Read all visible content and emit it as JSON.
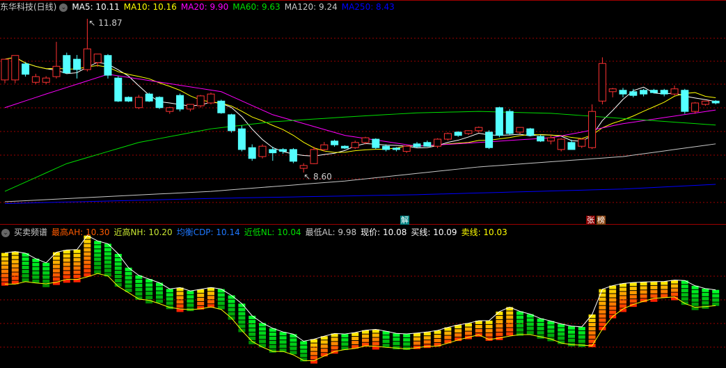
{
  "main_legend": {
    "title": "东华科技(日线)",
    "items": [
      {
        "label": "MA5: 10.11",
        "color": "#ffffff"
      },
      {
        "label": "MA10: 10.16",
        "color": "#ffff00"
      },
      {
        "label": "MA20: 9.90",
        "color": "#ff00ff"
      },
      {
        "label": "MA60: 9.63",
        "color": "#00e000"
      },
      {
        "label": "MA120: 9.24",
        "color": "#c8c8c8"
      },
      {
        "label": "MA250: 8.43",
        "color": "#0000ff"
      }
    ]
  },
  "annotations": {
    "high_label": "11.87",
    "low_label": "8.60"
  },
  "event_tags": [
    {
      "text": "解",
      "color": "#008080"
    },
    {
      "text": "张",
      "color": "#8b0000"
    },
    {
      "text": "榜",
      "color": "#8b4513"
    }
  ],
  "indicator_legend": {
    "title": "买卖频谱",
    "items": [
      {
        "label": "最高AH: 10.30",
        "color": "#ff5a00"
      },
      {
        "label": "近高NH: 10.20",
        "color": "#c8e632"
      },
      {
        "label": "均衡CDP: 10.14",
        "color": "#1e78ff"
      },
      {
        "label": "近低NL: 10.04",
        "color": "#00e000"
      },
      {
        "label": "最低AL: 9.98",
        "color": "#c8c8c8"
      },
      {
        "label": "现价: 10.08",
        "color": "#ffffff"
      },
      {
        "label": "买线: 10.09",
        "color": "#ffffff"
      },
      {
        "label": "卖线: 10.03",
        "color": "#ffff00"
      }
    ]
  },
  "colors": {
    "up": "#ff3232",
    "down": "#54ffff",
    "grid": "#a00000"
  },
  "chart_data": {
    "type": "candlestick",
    "candles_ohlc": [
      [
        10.57,
        11.01,
        10.5,
        11.01
      ],
      [
        10.57,
        11.09,
        10.5,
        11.09
      ],
      [
        10.91,
        10.95,
        10.64,
        10.69
      ],
      [
        10.52,
        10.7,
        10.48,
        10.64
      ],
      [
        10.52,
        10.65,
        10.48,
        10.61
      ],
      [
        10.64,
        11.38,
        10.6,
        10.86
      ],
      [
        11.09,
        11.15,
        10.7,
        10.72
      ],
      [
        11.01,
        11.1,
        10.6,
        10.79
      ],
      [
        10.79,
        11.87,
        10.75,
        11.23
      ],
      [
        10.94,
        11.1,
        10.85,
        11.12
      ],
      [
        11.09,
        11.12,
        10.6,
        10.67
      ],
      [
        10.61,
        10.65,
        10.1,
        10.12
      ],
      [
        10.2,
        10.22,
        10.1,
        10.12
      ],
      [
        9.98,
        10.25,
        9.95,
        10.2
      ],
      [
        10.27,
        10.3,
        10.1,
        10.12
      ],
      [
        10.2,
        10.22,
        9.95,
        9.98
      ],
      [
        9.9,
        10.0,
        9.85,
        9.98
      ],
      [
        10.24,
        10.28,
        9.9,
        9.95
      ],
      [
        9.95,
        10.05,
        9.9,
        10.05
      ],
      [
        10.02,
        10.25,
        9.98,
        10.23
      ],
      [
        10.08,
        10.3,
        10.05,
        10.27
      ],
      [
        10.12,
        10.15,
        9.85,
        9.87
      ],
      [
        9.83,
        9.85,
        9.45,
        9.49
      ],
      [
        9.53,
        9.6,
        9.05,
        9.09
      ],
      [
        9.13,
        9.2,
        8.85,
        8.9
      ],
      [
        8.94,
        9.2,
        8.9,
        9.16
      ],
      [
        9.09,
        9.15,
        8.85,
        9.02
      ],
      [
        9.09,
        9.12,
        9.0,
        9.05
      ],
      [
        9.09,
        9.12,
        8.8,
        8.84
      ],
      [
        8.69,
        8.8,
        8.6,
        8.75
      ],
      [
        8.79,
        9.15,
        8.78,
        9.09
      ],
      [
        9.09,
        9.25,
        9.05,
        9.19
      ],
      [
        9.27,
        9.3,
        9.15,
        9.19
      ],
      [
        9.16,
        9.18,
        9.1,
        9.12
      ],
      [
        9.13,
        9.28,
        9.1,
        9.24
      ],
      [
        9.24,
        9.36,
        9.2,
        9.34
      ],
      [
        9.31,
        9.33,
        9.1,
        9.13
      ],
      [
        9.16,
        9.2,
        9.05,
        9.09
      ],
      [
        9.12,
        9.14,
        9.05,
        9.09
      ],
      [
        9.05,
        9.18,
        9.02,
        9.16
      ],
      [
        9.21,
        9.25,
        9.12,
        9.15
      ],
      [
        9.24,
        9.28,
        9.15,
        9.16
      ],
      [
        9.16,
        9.33,
        9.12,
        9.31
      ],
      [
        9.31,
        9.45,
        9.28,
        9.43
      ],
      [
        9.46,
        9.48,
        9.36,
        9.39
      ],
      [
        9.43,
        9.5,
        9.4,
        9.49
      ],
      [
        9.49,
        9.58,
        9.45,
        9.56
      ],
      [
        9.46,
        9.5,
        9.1,
        9.13
      ],
      [
        9.98,
        10.0,
        9.35,
        9.39
      ],
      [
        9.9,
        9.95,
        9.4,
        9.43
      ],
      [
        9.46,
        9.56,
        9.42,
        9.56
      ],
      [
        9.53,
        9.55,
        9.37,
        9.39
      ],
      [
        9.37,
        9.4,
        9.25,
        9.27
      ],
      [
        9.27,
        9.4,
        9.2,
        9.34
      ],
      [
        9.09,
        9.33,
        9.05,
        9.31
      ],
      [
        9.24,
        9.3,
        9.09,
        9.09
      ],
      [
        9.16,
        9.33,
        9.12,
        9.31
      ],
      [
        9.13,
        10.05,
        9.1,
        9.9
      ],
      [
        10.12,
        11.05,
        10.05,
        10.92
      ],
      [
        10.32,
        10.4,
        10.2,
        10.38
      ],
      [
        10.35,
        10.4,
        10.2,
        10.27
      ],
      [
        10.32,
        10.38,
        10.2,
        10.24
      ],
      [
        10.35,
        10.38,
        10.22,
        10.27
      ],
      [
        10.35,
        10.38,
        10.28,
        10.3
      ],
      [
        10.35,
        10.38,
        10.22,
        10.27
      ],
      [
        10.27,
        10.45,
        10.24,
        10.38
      ],
      [
        10.35,
        10.38,
        9.85,
        9.9
      ],
      [
        9.9,
        10.1,
        9.85,
        10.08
      ],
      [
        10.05,
        10.12,
        10.02,
        10.12
      ],
      [
        10.12,
        10.14,
        10.05,
        10.08
      ]
    ],
    "ma20": [
      [
        0,
        9.98
      ],
      [
        4,
        10.27
      ],
      [
        10,
        10.69
      ],
      [
        16,
        10.49
      ],
      [
        21,
        10.32
      ],
      [
        26,
        9.83
      ],
      [
        33,
        9.39
      ],
      [
        40,
        9.16
      ],
      [
        46,
        9.24
      ],
      [
        53,
        9.34
      ],
      [
        56,
        9.46
      ],
      [
        60,
        9.64
      ],
      [
        69,
        9.93
      ]
    ],
    "ma60": [
      [
        0,
        8.2
      ],
      [
        6,
        8.79
      ],
      [
        13,
        9.24
      ],
      [
        20,
        9.53
      ],
      [
        26,
        9.68
      ],
      [
        33,
        9.78
      ],
      [
        40,
        9.87
      ],
      [
        46,
        9.9
      ],
      [
        53,
        9.86
      ],
      [
        60,
        9.75
      ],
      [
        69,
        9.61
      ]
    ],
    "ma120": [
      [
        0,
        7.98
      ],
      [
        20,
        8.2
      ],
      [
        33,
        8.42
      ],
      [
        46,
        8.72
      ],
      [
        60,
        8.94
      ],
      [
        69,
        9.21
      ]
    ],
    "ma250": [
      [
        0,
        7.94
      ],
      [
        20,
        8.05
      ],
      [
        40,
        8.13
      ],
      [
        60,
        8.25
      ],
      [
        69,
        8.35
      ]
    ]
  }
}
